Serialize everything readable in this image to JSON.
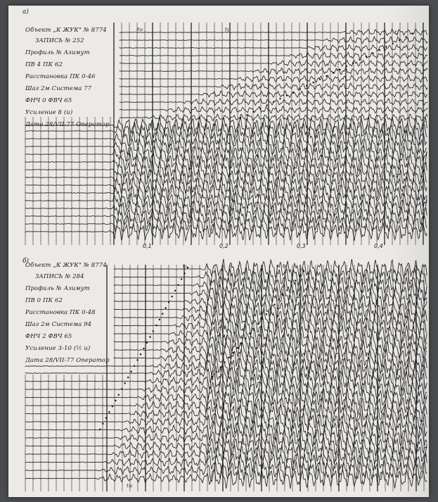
{
  "record_a": {
    "panel_label": "а)",
    "header_lines": [
      "Объект „К ЖУК\" № 8774",
      "ЗАПИСЬ № 252",
      "Профиль № Азимут",
      "ПВ 4 ПК 62",
      "Расстановка ПК 0-46",
      "Шаг 2м Система 77",
      "ФНЧ 0 ФВЧ 65",
      "Усиление 8 (и)",
      "Дата 28/VII-77 Оператор"
    ],
    "time_ticks": [
      "0,1",
      "0,2",
      "0,3",
      "0,4"
    ],
    "wave_marks": [
      "t₁₀",
      "t₂",
      "t₃"
    ]
  },
  "record_b": {
    "panel_label": "б)",
    "header_lines": [
      "Объект „К ЖУК\" № 8774",
      "ЗАПИСЬ № 284",
      "Профиль № Азимут",
      "ПВ 0 ПК 62",
      "Расстановка ПК 0-48",
      "Шаг 2м Система 94",
      "ФНЧ 2 ФВЧ 65",
      "Усиление 3-10 (½ и)",
      "Дата 28/VII-77 Оператор"
    ],
    "wave_marks": [
      "t₁",
      "t₂",
      "t₁₀"
    ]
  }
}
